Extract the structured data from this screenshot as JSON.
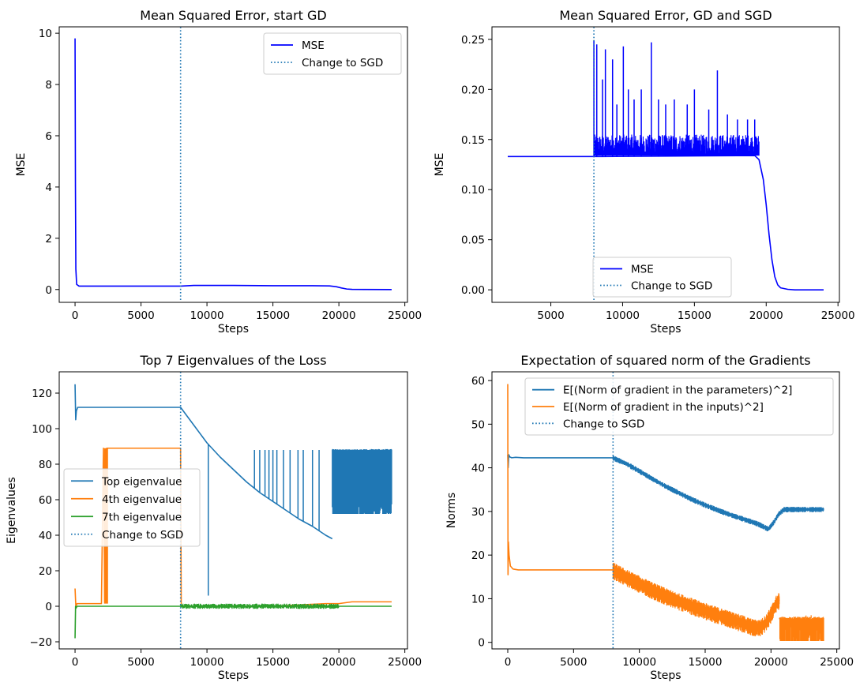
{
  "chart_data": [
    {
      "type": "line",
      "title": "Mean Squared Error, start GD",
      "xlabel": "Steps",
      "ylabel": "MSE",
      "xlim": [
        -1200,
        25200
      ],
      "ylim": [
        -0.5,
        10.25
      ],
      "xticks": [
        0,
        5000,
        10000,
        15000,
        20000,
        25000
      ],
      "yticks": [
        0,
        2,
        4,
        6,
        8,
        10
      ],
      "grid": false,
      "legend_position": "top-right",
      "vline": {
        "x": 8000,
        "name": "Change to SGD",
        "color": "#1f77b4"
      },
      "series": [
        {
          "name": "MSE",
          "color": "#0000ff",
          "x": [
            0,
            30,
            60,
            120,
            300,
            1000,
            4000,
            8000,
            9000,
            12000,
            15000,
            18000,
            19300,
            19800,
            20200,
            20600,
            21000,
            22000,
            24000
          ],
          "y": [
            9.8,
            4.0,
            0.8,
            0.2,
            0.134,
            0.133,
            0.133,
            0.133,
            0.16,
            0.16,
            0.15,
            0.15,
            0.14,
            0.11,
            0.06,
            0.02,
            0.005,
            0.001,
            0.0
          ]
        }
      ]
    },
    {
      "type": "line",
      "title": "Mean Squared Error, GD and SGD",
      "xlabel": "Steps",
      "ylabel": "MSE",
      "xlim": [
        900,
        25100
      ],
      "ylim": [
        -0.0125,
        0.2625
      ],
      "xticks": [
        5000,
        10000,
        15000,
        20000,
        25000
      ],
      "yticks": [
        0.0,
        0.05,
        0.1,
        0.15,
        0.2,
        0.25
      ],
      "ytick_labels": [
        "0.00",
        "0.05",
        "0.10",
        "0.15",
        "0.20",
        "0.25"
      ],
      "grid": false,
      "legend_position": "bottom-left",
      "vline": {
        "x": 8000,
        "name": "Change to SGD",
        "color": "#1f77b4"
      },
      "series": [
        {
          "name": "MSE",
          "color": "#0000ff",
          "x": [
            2000,
            8000,
            19200,
            19500,
            19800,
            20000,
            20200,
            20400,
            20600,
            20800,
            21000,
            21500,
            22000,
            24000
          ],
          "y": [
            0.133,
            0.133,
            0.134,
            0.13,
            0.11,
            0.085,
            0.055,
            0.03,
            0.013,
            0.005,
            0.002,
            0.0005,
            0.0,
            0.0
          ],
          "noise_band": {
            "x_start": 8000,
            "x_end": 19500,
            "floor": 0.134,
            "typical_max": 0.155
          },
          "spikes": [
            [
              8000,
              0.249
            ],
            [
              8200,
              0.245
            ],
            [
              8600,
              0.21
            ],
            [
              8800,
              0.24
            ],
            [
              9300,
              0.23
            ],
            [
              9600,
              0.185
            ],
            [
              10050,
              0.243
            ],
            [
              10400,
              0.2
            ],
            [
              10800,
              0.19
            ],
            [
              11300,
              0.2
            ],
            [
              12000,
              0.247
            ],
            [
              12500,
              0.19
            ],
            [
              13000,
              0.185
            ],
            [
              13600,
              0.19
            ],
            [
              14500,
              0.185
            ],
            [
              15000,
              0.2
            ],
            [
              16000,
              0.18
            ],
            [
              16600,
              0.219
            ],
            [
              17300,
              0.175
            ],
            [
              18000,
              0.17
            ],
            [
              18700,
              0.17
            ],
            [
              19200,
              0.17
            ]
          ]
        }
      ]
    },
    {
      "type": "line",
      "title": "Top 7 Eigenvalues of the Loss",
      "xlabel": "Steps",
      "ylabel": "Eigenvalues",
      "xlim": [
        -1200,
        25200
      ],
      "ylim": [
        -24,
        132
      ],
      "xticks": [
        0,
        5000,
        10000,
        15000,
        20000,
        25000
      ],
      "yticks": [
        -20,
        0,
        20,
        40,
        60,
        80,
        100,
        120
      ],
      "grid": false,
      "legend_position": "center-left",
      "vline": {
        "x": 8000,
        "name": "Change to SGD",
        "color": "#1f77b4"
      },
      "series": [
        {
          "name": "Top eigenvalue",
          "color": "#1f77b4",
          "x": [
            0,
            50,
            100,
            200,
            400,
            800,
            2000,
            8000,
            9000,
            10000,
            11000,
            12000,
            13000,
            14000,
            15000,
            16000,
            17000,
            18000,
            19000,
            19500
          ],
          "y": [
            125,
            105,
            110,
            112,
            112,
            112,
            112,
            112,
            102,
            92,
            84,
            77,
            70,
            64,
            59,
            54,
            49,
            45,
            40,
            38
          ],
          "spikes": [
            [
              10100,
              6
            ],
            [
              13600,
              88
            ],
            [
              14000,
              88
            ],
            [
              14400,
              88
            ],
            [
              14700,
              88
            ],
            [
              15000,
              88
            ],
            [
              15300,
              88
            ],
            [
              15800,
              88
            ],
            [
              16300,
              88
            ],
            [
              16900,
              88
            ],
            [
              17300,
              88
            ],
            [
              18000,
              88
            ],
            [
              18500,
              88
            ]
          ],
          "band": {
            "x_start": 19500,
            "x_end": 24000,
            "top": 88.5,
            "bottom": 52
          }
        },
        {
          "name": "4th eigenvalue",
          "color": "#ff7f0e",
          "x": [
            0,
            60,
            150,
            400,
            1000,
            2000,
            2150,
            2250,
            2400,
            7990,
            8000,
            8050,
            10000,
            15000,
            19000,
            20000,
            21000,
            24000
          ],
          "y": [
            10,
            0,
            1.5,
            1.5,
            1.5,
            1.5,
            89,
            2,
            89,
            89,
            89,
            0,
            0,
            0,
            1.5,
            1.5,
            2.5,
            2.5
          ],
          "block": {
            "x_start": 2200,
            "x_end": 2500,
            "top": 89,
            "bottom": 1.5
          }
        },
        {
          "name": "7th eigenvalue",
          "color": "#2ca02c",
          "x": [
            0,
            40,
            80,
            150,
            400,
            1000,
            8000,
            24000
          ],
          "y": [
            -18,
            0,
            -1,
            0,
            0,
            0,
            0,
            0
          ],
          "noise_band": {
            "x_start": 8000,
            "x_end": 20000,
            "amplitude": 1.5
          }
        }
      ]
    },
    {
      "type": "line",
      "title": "Expectation of squared norm of the Gradients",
      "xlabel": "Steps",
      "ylabel": "Norms",
      "xlim": [
        -1200,
        25200
      ],
      "ylim": [
        -1.5,
        62
      ],
      "xticks": [
        0,
        5000,
        10000,
        15000,
        20000,
        25000
      ],
      "yticks": [
        0,
        10,
        20,
        30,
        40,
        50,
        60
      ],
      "grid": false,
      "legend_position": "top-right",
      "vline": {
        "x": 8000,
        "name": "Change to SGD",
        "color": "#1f77b4"
      },
      "series": [
        {
          "name": "E[(Norm of gradient in the parameters)^2]",
          "color": "#1f77b4",
          "x": [
            0,
            30,
            80,
            150,
            300,
            600,
            1200,
            2000,
            8000,
            9000,
            10000,
            11000,
            12000,
            13000,
            14000,
            15000,
            16000,
            17000,
            18000,
            19000,
            19800,
            20200,
            20600,
            21000,
            22000,
            23000,
            24000
          ],
          "y": [
            43,
            40,
            43,
            42.5,
            42.3,
            42.4,
            42.3,
            42.3,
            42.3,
            41,
            39.3,
            37.5,
            35.8,
            34.3,
            32.8,
            31.5,
            30.3,
            29.2,
            28.2,
            27.2,
            26,
            27.5,
            29.5,
            30.5,
            30.5,
            30.5,
            30.5
          ],
          "noise": {
            "x_start": 8000,
            "x_end": 24000,
            "amplitude": 0.7
          }
        },
        {
          "name": "E[(Norm of gradient in the inputs)^2]",
          "color": "#ff7f0e",
          "x": [
            0,
            20,
            50,
            100,
            200,
            400,
            800,
            1500,
            8000,
            9000,
            10000,
            11000,
            12000,
            13000,
            14000,
            15000,
            16000,
            17000,
            18000,
            18700,
            19200,
            19600,
            20000,
            20400,
            20650
          ],
          "y": [
            59.2,
            15.5,
            23,
            20,
            17.5,
            16.8,
            16.6,
            16.6,
            16.6,
            15,
            13.5,
            12,
            10.7,
            9.5,
            8.4,
            7.3,
            6.3,
            5.3,
            4.3,
            3.5,
            3.5,
            4.5,
            6.5,
            9,
            9.8
          ],
          "noise": {
            "x_start": 8000,
            "x_end": 20650,
            "amplitude": 2.2
          },
          "band": {
            "x_start": 20650,
            "x_end": 24000,
            "top": 5.9,
            "bottom": 0.3
          }
        }
      ]
    }
  ]
}
